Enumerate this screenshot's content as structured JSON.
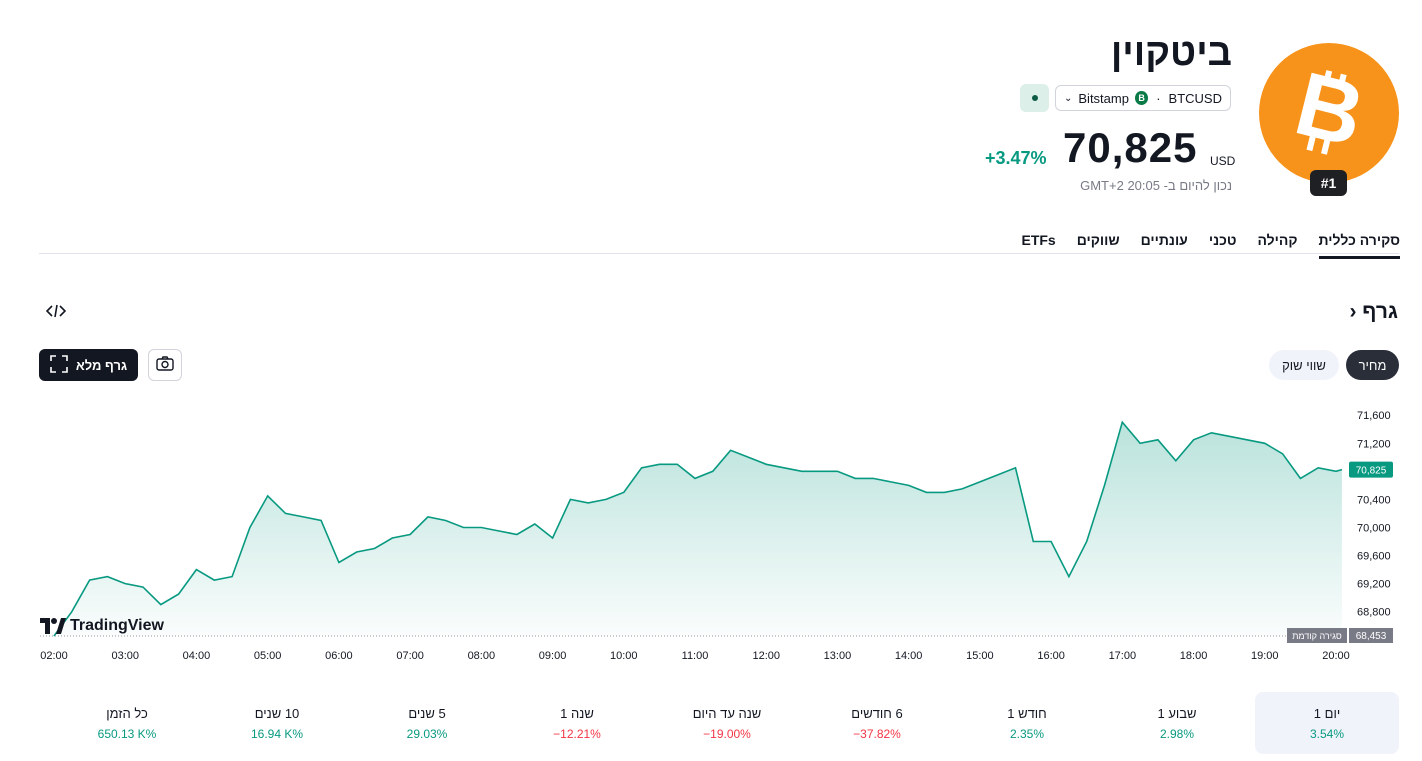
{
  "header": {
    "name": "ביטקוין",
    "rank": "#1",
    "symbol": "BTCUSD",
    "exchange": "Bitstamp",
    "exchange_badge": "B",
    "price": "70,825",
    "currency": "USD",
    "change": "+3.47%",
    "as_of": "נכון להיום ב- 20:05 GMT+2"
  },
  "tabs": [
    "סקירה כללית",
    "קהילה",
    "טכני",
    "עונתיים",
    "שווקים",
    "ETFs"
  ],
  "chart_header": {
    "title": "גרף",
    "price_button": "מחיר",
    "mcap_button": "שווי שוק",
    "fullscreen_button": "גרף מלא"
  },
  "colors": {
    "up": "#089981",
    "down": "#f23645",
    "accent": "#f7931a"
  },
  "chart_data": {
    "type": "area",
    "x_labels": [
      "02:00",
      "03:00",
      "04:00",
      "05:00",
      "06:00",
      "07:00",
      "08:00",
      "09:00",
      "10:00",
      "11:00",
      "12:00",
      "13:00",
      "14:00",
      "15:00",
      "16:00",
      "17:00",
      "18:00",
      "19:00",
      "20:00"
    ],
    "y_ticks": [
      68800,
      69200,
      69600,
      70000,
      70400,
      70800,
      71200,
      71600
    ],
    "y_tick_labels": [
      "68,800",
      "69,200",
      "69,600",
      "70,000",
      "70,400",
      "70,800",
      "71,200",
      "71,600"
    ],
    "ylim": [
      68453,
      71760
    ],
    "points": [
      [
        "02:00",
        68453
      ],
      [
        "02:15",
        68800
      ],
      [
        "02:30",
        69250
      ],
      [
        "02:45",
        69300
      ],
      [
        "03:00",
        69200
      ],
      [
        "03:15",
        69150
      ],
      [
        "03:30",
        68900
      ],
      [
        "03:45",
        69050
      ],
      [
        "04:00",
        69400
      ],
      [
        "04:15",
        69250
      ],
      [
        "04:30",
        69300
      ],
      [
        "04:45",
        70000
      ],
      [
        "05:00",
        70450
      ],
      [
        "05:15",
        70200
      ],
      [
        "05:30",
        70150
      ],
      [
        "05:45",
        70100
      ],
      [
        "06:00",
        69500
      ],
      [
        "06:15",
        69650
      ],
      [
        "06:30",
        69700
      ],
      [
        "06:45",
        69850
      ],
      [
        "07:00",
        69900
      ],
      [
        "07:15",
        70150
      ],
      [
        "07:30",
        70100
      ],
      [
        "07:45",
        70000
      ],
      [
        "08:00",
        70000
      ],
      [
        "08:15",
        69950
      ],
      [
        "08:30",
        69900
      ],
      [
        "08:45",
        70050
      ],
      [
        "09:00",
        69850
      ],
      [
        "09:15",
        70400
      ],
      [
        "09:30",
        70350
      ],
      [
        "09:45",
        70400
      ],
      [
        "10:00",
        70500
      ],
      [
        "10:15",
        70850
      ],
      [
        "10:30",
        70900
      ],
      [
        "10:45",
        70900
      ],
      [
        "11:00",
        70700
      ],
      [
        "11:15",
        70800
      ],
      [
        "11:30",
        71100
      ],
      [
        "11:45",
        71000
      ],
      [
        "12:00",
        70900
      ],
      [
        "12:15",
        70850
      ],
      [
        "12:30",
        70800
      ],
      [
        "12:45",
        70800
      ],
      [
        "13:00",
        70800
      ],
      [
        "13:15",
        70700
      ],
      [
        "13:30",
        70700
      ],
      [
        "13:45",
        70650
      ],
      [
        "14:00",
        70600
      ],
      [
        "14:15",
        70500
      ],
      [
        "14:30",
        70500
      ],
      [
        "14:45",
        70550
      ],
      [
        "15:00",
        70650
      ],
      [
        "15:15",
        70750
      ],
      [
        "15:30",
        70850
      ],
      [
        "15:45",
        69800
      ],
      [
        "16:00",
        69800
      ],
      [
        "16:15",
        69300
      ],
      [
        "16:30",
        69800
      ],
      [
        "16:45",
        70600
      ],
      [
        "17:00",
        71500
      ],
      [
        "17:15",
        71200
      ],
      [
        "17:30",
        71250
      ],
      [
        "17:45",
        70950
      ],
      [
        "18:00",
        71250
      ],
      [
        "18:15",
        71350
      ],
      [
        "18:30",
        71300
      ],
      [
        "18:45",
        71250
      ],
      [
        "19:00",
        71200
      ],
      [
        "19:15",
        71050
      ],
      [
        "19:30",
        70700
      ],
      [
        "19:45",
        70850
      ],
      [
        "20:00",
        70800
      ],
      [
        "20:05",
        70825
      ]
    ],
    "last_price_label": "70,825",
    "prev_close": 68453,
    "prev_close_label": "68,453",
    "prev_close_tag": "סגירה קודמת",
    "brand": "TradingView"
  },
  "performance": [
    {
      "label": "יום 1",
      "value": "3.54%",
      "dir": "pos"
    },
    {
      "label": "שבוע 1",
      "value": "2.98%",
      "dir": "pos"
    },
    {
      "label": "חודש 1",
      "value": "2.35%",
      "dir": "pos"
    },
    {
      "label": "6 חודשים",
      "value": "−37.82%",
      "dir": "neg"
    },
    {
      "label": "שנה עד היום",
      "value": "−19.00%",
      "dir": "neg"
    },
    {
      "label": "שנה 1",
      "value": "−12.21%",
      "dir": "neg"
    },
    {
      "label": "5 שנים",
      "value": "29.03%",
      "dir": "pos"
    },
    {
      "label": "10 שנים",
      "value": "16.94 K%",
      "dir": "pos"
    },
    {
      "label": "כל הזמן",
      "value": "650.13 K%",
      "dir": "pos"
    }
  ]
}
